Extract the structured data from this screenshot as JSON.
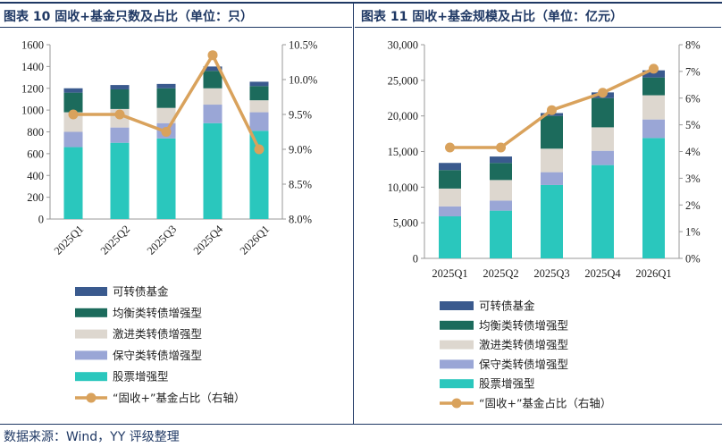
{
  "colors": {
    "convertible": "#3a5a8e",
    "balanced": "#1c6b5c",
    "aggressive": "#ddd7cf",
    "conservative": "#9aa6d6",
    "stock": "#2ac7bd",
    "ratio_line": "#d9a25c",
    "title": "#1f3864"
  },
  "titles": {
    "left": "图表 10 固收+基金只数及占比（单位：只）",
    "right": "图表 11 固收+基金规模及占比（单位：亿元）"
  },
  "source": "数据来源：Wind，YY 评级整理",
  "chart_data": [
    {
      "type": "bar",
      "stacked": true,
      "categories": [
        "2025Q1",
        "2025Q2",
        "2025Q3",
        "2025Q4",
        "2026Q1"
      ],
      "series": [
        {
          "name": "股票增强型",
          "color_key": "stock",
          "values": [
            660,
            700,
            740,
            880,
            810
          ]
        },
        {
          "name": "保守类转债增强型",
          "color_key": "conservative",
          "values": [
            140,
            140,
            140,
            170,
            170
          ]
        },
        {
          "name": "激进类转债增强型",
          "color_key": "aggressive",
          "values": [
            180,
            170,
            140,
            150,
            110
          ]
        },
        {
          "name": "均衡类转债增强型",
          "color_key": "balanced",
          "values": [
            180,
            180,
            180,
            160,
            130
          ]
        },
        {
          "name": "可转债基金",
          "color_key": "convertible",
          "values": [
            40,
            40,
            40,
            40,
            40
          ]
        }
      ],
      "line": {
        "name": "“固收+”基金占比（右轴）",
        "values": [
          9.5,
          9.5,
          9.25,
          10.35,
          9.0
        ]
      },
      "ylim": [
        0,
        1600
      ],
      "yticks": [
        "0",
        "200",
        "400",
        "600",
        "800",
        "1000",
        "1200",
        "1400",
        "1600"
      ],
      "y2lim": [
        8.0,
        10.5
      ],
      "y2ticks": [
        "8.0%",
        "8.5%",
        "9.0%",
        "9.5%",
        "10.0%",
        "10.5%"
      ],
      "xlabel_rotated": true,
      "grid": false,
      "legend_position": "bottom"
    },
    {
      "type": "bar",
      "stacked": true,
      "categories": [
        "2025Q1",
        "2025Q2",
        "2025Q3",
        "2025Q4",
        "2026Q1"
      ],
      "series": [
        {
          "name": "股票增强型",
          "color_key": "stock",
          "values": [
            5900,
            6700,
            10300,
            13100,
            16900
          ]
        },
        {
          "name": "保守类转债增强型",
          "color_key": "conservative",
          "values": [
            1400,
            1400,
            1800,
            2000,
            2600
          ]
        },
        {
          "name": "激进类转债增强型",
          "color_key": "aggressive",
          "values": [
            2500,
            2900,
            3300,
            3300,
            3400
          ]
        },
        {
          "name": "均衡类转债增强型",
          "color_key": "balanced",
          "values": [
            2600,
            2400,
            4600,
            4100,
            2500
          ]
        },
        {
          "name": "可转债基金",
          "color_key": "convertible",
          "values": [
            1000,
            900,
            400,
            800,
            1000
          ]
        }
      ],
      "line": {
        "name": "“固收+”基金占比（右轴）",
        "values": [
          4.15,
          4.15,
          5.55,
          6.2,
          7.1
        ]
      },
      "ylim": [
        0,
        30000
      ],
      "yticks": [
        "0",
        "5,000",
        "10,000",
        "15,000",
        "20,000",
        "25,000",
        "30,000"
      ],
      "y2lim": [
        0,
        8
      ],
      "y2ticks": [
        "0%",
        "1%",
        "2%",
        "3%",
        "4%",
        "5%",
        "6%",
        "7%",
        "8%"
      ],
      "xlabel_rotated": false,
      "grid": false,
      "legend_position": "bottom"
    }
  ],
  "legend": [
    {
      "label": "可转债基金",
      "color_key": "convertible",
      "kind": "box"
    },
    {
      "label": "均衡类转债增强型",
      "color_key": "balanced",
      "kind": "box"
    },
    {
      "label": "激进类转债增强型",
      "color_key": "aggressive",
      "kind": "box"
    },
    {
      "label": "保守类转债增强型",
      "color_key": "conservative",
      "kind": "box"
    },
    {
      "label": "股票增强型",
      "color_key": "stock",
      "kind": "box"
    },
    {
      "label": "“固收+”基金占比（右轴）",
      "color_key": "ratio_line",
      "kind": "line"
    }
  ]
}
